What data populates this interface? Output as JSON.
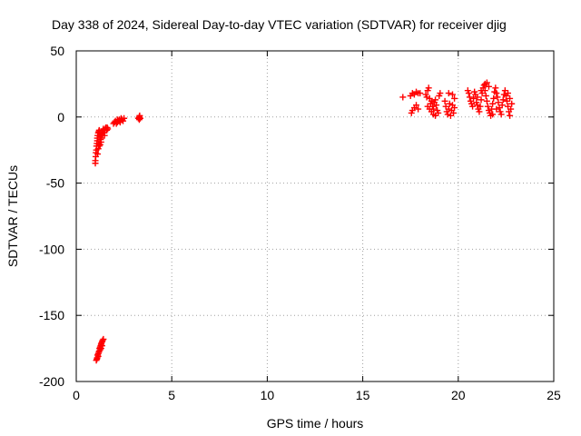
{
  "chart_data": {
    "type": "scatter",
    "title": "Day 338 of 2024, Sidereal Day-to-day VTEC variation (SDTVAR) for receiver djig",
    "xlabel": "GPS time / hours",
    "ylabel": "SDTVAR / TECUs",
    "xlim": [
      0,
      25
    ],
    "ylim": [
      -200,
      50
    ],
    "xticks": [
      0,
      5,
      10,
      15,
      20,
      25
    ],
    "yticks": [
      -200,
      -150,
      -100,
      -50,
      0,
      50
    ],
    "xtick_labels": [
      "0",
      "5",
      "10",
      "15",
      "20",
      "25"
    ],
    "ytick_labels": [
      "-200",
      "-150",
      "-100",
      "-50",
      "0",
      "50"
    ],
    "grid": true,
    "marker": "plus",
    "color": "#ff0000",
    "series": [
      {
        "points": [
          [
            1.0,
            -35
          ],
          [
            1.0,
            -33
          ],
          [
            1.02,
            -30
          ],
          [
            1.03,
            -27
          ],
          [
            1.05,
            -25
          ],
          [
            1.06,
            -22
          ],
          [
            1.08,
            -20
          ],
          [
            1.1,
            -18
          ],
          [
            1.1,
            -16
          ],
          [
            1.12,
            -14
          ],
          [
            1.15,
            -12
          ],
          [
            1.18,
            -11
          ],
          [
            1.2,
            -10
          ],
          [
            1.22,
            -12
          ],
          [
            1.25,
            -15
          ],
          [
            1.28,
            -17
          ],
          [
            1.3,
            -19
          ],
          [
            1.32,
            -14
          ],
          [
            1.35,
            -13
          ],
          [
            1.38,
            -11
          ],
          [
            1.4,
            -10
          ],
          [
            1.42,
            -9
          ],
          [
            1.45,
            -12
          ],
          [
            1.48,
            -14
          ],
          [
            1.5,
            -10
          ],
          [
            1.52,
            -9
          ],
          [
            1.55,
            -8
          ],
          [
            1.6,
            -10
          ],
          [
            1.62,
            -8
          ],
          [
            1.65,
            -9
          ],
          [
            1.15,
            -24
          ],
          [
            1.2,
            -22
          ],
          [
            1.25,
            -21
          ],
          [
            1.3,
            -16
          ],
          [
            1.12,
            -28
          ],
          [
            1.18,
            -20
          ],
          [
            1.95,
            -5
          ],
          [
            2.0,
            -4
          ],
          [
            2.05,
            -3
          ],
          [
            2.1,
            -5
          ],
          [
            2.15,
            -4
          ],
          [
            2.2,
            -3
          ],
          [
            2.25,
            -2
          ],
          [
            2.3,
            -3
          ],
          [
            2.35,
            -1
          ],
          [
            2.4,
            -2
          ],
          [
            2.45,
            -3
          ],
          [
            2.5,
            -1
          ],
          [
            2.15,
            -2
          ],
          [
            2.3,
            -4
          ],
          [
            3.25,
            -1
          ],
          [
            3.3,
            0
          ],
          [
            3.32,
            1
          ],
          [
            3.35,
            -1
          ],
          [
            3.3,
            -2
          ],
          [
            1.05,
            -184
          ],
          [
            1.08,
            -183
          ],
          [
            1.1,
            -182
          ],
          [
            1.12,
            -180
          ],
          [
            1.15,
            -179
          ],
          [
            1.18,
            -178
          ],
          [
            1.2,
            -177
          ],
          [
            1.22,
            -175
          ],
          [
            1.25,
            -174
          ],
          [
            1.28,
            -173
          ],
          [
            1.3,
            -172
          ],
          [
            1.32,
            -171
          ],
          [
            1.35,
            -170
          ],
          [
            1.38,
            -169
          ],
          [
            1.42,
            -168
          ],
          [
            1.15,
            -181
          ],
          [
            1.25,
            -176
          ],
          [
            1.3,
            -175
          ],
          [
            1.35,
            -173
          ],
          [
            17.1,
            15
          ],
          [
            17.5,
            16
          ],
          [
            17.6,
            18
          ],
          [
            17.7,
            17
          ],
          [
            17.8,
            19
          ],
          [
            17.9,
            18
          ],
          [
            18.0,
            18
          ],
          [
            17.6,
            5
          ],
          [
            17.7,
            7
          ],
          [
            17.8,
            9
          ],
          [
            17.9,
            6
          ],
          [
            17.55,
            3
          ],
          [
            18.3,
            17
          ],
          [
            18.35,
            15
          ],
          [
            18.4,
            20
          ],
          [
            18.45,
            22
          ],
          [
            18.5,
            14
          ],
          [
            18.55,
            10
          ],
          [
            18.6,
            12
          ],
          [
            18.65,
            8
          ],
          [
            18.7,
            6
          ],
          [
            18.75,
            11
          ],
          [
            18.8,
            13
          ],
          [
            18.85,
            9
          ],
          [
            18.9,
            5
          ],
          [
            18.95,
            3
          ],
          [
            19.0,
            16
          ],
          [
            19.05,
            18
          ],
          [
            18.4,
            8
          ],
          [
            18.5,
            6
          ],
          [
            18.6,
            4
          ],
          [
            18.7,
            2
          ],
          [
            18.8,
            1
          ],
          [
            19.3,
            12
          ],
          [
            19.35,
            8
          ],
          [
            19.4,
            4
          ],
          [
            19.45,
            2
          ],
          [
            19.5,
            6
          ],
          [
            19.55,
            10
          ],
          [
            19.6,
            1
          ],
          [
            19.65,
            5
          ],
          [
            19.7,
            9
          ],
          [
            19.75,
            3
          ],
          [
            19.8,
            7
          ],
          [
            19.5,
            18
          ],
          [
            19.7,
            17
          ],
          [
            19.8,
            14
          ],
          [
            20.5,
            20
          ],
          [
            20.55,
            18
          ],
          [
            20.6,
            15
          ],
          [
            20.65,
            12
          ],
          [
            20.7,
            10
          ],
          [
            20.75,
            8
          ],
          [
            20.8,
            14
          ],
          [
            20.85,
            19
          ],
          [
            20.9,
            17
          ],
          [
            20.95,
            11
          ],
          [
            21.0,
            9
          ],
          [
            21.05,
            6
          ],
          [
            21.1,
            4
          ],
          [
            21.15,
            8
          ],
          [
            21.2,
            13
          ],
          [
            21.25,
            18
          ],
          [
            21.3,
            22
          ],
          [
            21.35,
            24
          ],
          [
            21.4,
            20
          ],
          [
            21.45,
            16
          ],
          [
            21.5,
            12
          ],
          [
            21.55,
            8
          ],
          [
            21.6,
            5
          ],
          [
            21.65,
            3
          ],
          [
            21.7,
            1
          ],
          [
            21.75,
            6
          ],
          [
            21.8,
            10
          ],
          [
            21.85,
            14
          ],
          [
            21.9,
            19
          ],
          [
            21.95,
            22
          ],
          [
            22.0,
            18
          ],
          [
            22.05,
            15
          ],
          [
            22.1,
            11
          ],
          [
            22.15,
            7
          ],
          [
            22.2,
            4
          ],
          [
            22.25,
            2
          ],
          [
            22.3,
            9
          ],
          [
            22.35,
            13
          ],
          [
            22.4,
            17
          ],
          [
            22.45,
            20
          ],
          [
            22.5,
            16
          ],
          [
            22.55,
            12
          ],
          [
            22.6,
            8
          ],
          [
            22.65,
            4
          ],
          [
            22.7,
            1
          ],
          [
            22.75,
            6
          ],
          [
            22.8,
            10
          ],
          [
            22.7,
            14
          ],
          [
            22.6,
            18
          ],
          [
            21.4,
            25
          ],
          [
            21.5,
            26
          ],
          [
            21.6,
            23
          ],
          [
            21.0,
            15
          ],
          [
            21.2,
            20
          ],
          [
            22.0,
            6
          ],
          [
            21.8,
            2
          ]
        ]
      }
    ]
  }
}
